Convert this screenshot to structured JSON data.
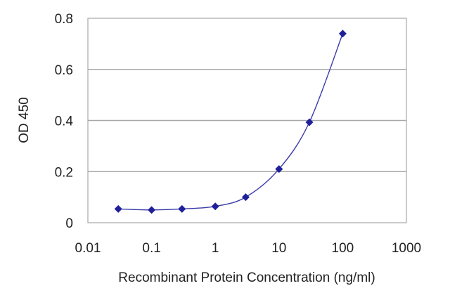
{
  "chart_data": {
    "type": "line",
    "xscale": "log",
    "xlabel": "Recombinant Protein Concentration (ng/ml)",
    "ylabel": "OD 450",
    "xlim": [
      0.01,
      1000
    ],
    "ylim": [
      0,
      0.8
    ],
    "x_ticks": [
      0.01,
      0.1,
      1,
      10,
      100,
      1000
    ],
    "x_tick_labels": [
      "0.01",
      "0.1",
      "1",
      "10",
      "100",
      "1000"
    ],
    "y_ticks": [
      0,
      0.2,
      0.4,
      0.6,
      0.8
    ],
    "y_tick_labels": [
      "0",
      "0.2",
      "0.4",
      "0.6",
      "0.8"
    ],
    "grid": "horizontal",
    "series": [
      {
        "x": [
          0.03,
          0.1,
          0.3,
          1,
          3,
          10,
          30,
          100
        ],
        "y": [
          0.054,
          0.05,
          0.054,
          0.064,
          0.1,
          0.21,
          0.393,
          0.74
        ]
      }
    ],
    "colors": {
      "line": "#3a3aa8",
      "marker": "#1f1f9a",
      "grid": "#a8a8a8",
      "axis": "#a8a8a8"
    }
  }
}
